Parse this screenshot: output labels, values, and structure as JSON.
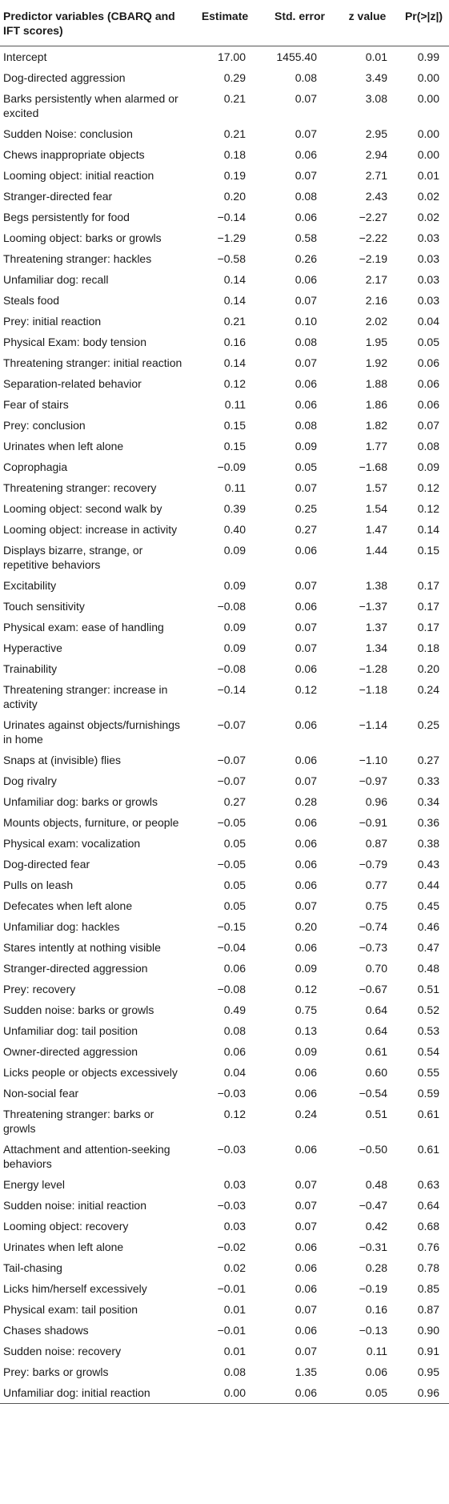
{
  "table": {
    "headers": {
      "predictor": "Predictor variables (CBARQ and IFT scores)",
      "estimate": "Estimate",
      "std_error": "Std. error",
      "z_value": "z value",
      "p_value": "Pr(>|z|)"
    },
    "rows": [
      {
        "name": "Intercept",
        "estimate": "17.00",
        "se": "1455.40",
        "z": "0.01",
        "p": "0.99"
      },
      {
        "name": "Dog-directed aggression",
        "estimate": "0.29",
        "se": "0.08",
        "z": "3.49",
        "p": "0.00"
      },
      {
        "name": "Barks persistently when alarmed or excited",
        "estimate": "0.21",
        "se": "0.07",
        "z": "3.08",
        "p": "0.00"
      },
      {
        "name": "Sudden Noise: conclusion",
        "estimate": "0.21",
        "se": "0.07",
        "z": "2.95",
        "p": "0.00"
      },
      {
        "name": "Chews inappropriate objects",
        "estimate": "0.18",
        "se": "0.06",
        "z": "2.94",
        "p": "0.00"
      },
      {
        "name": "Looming object: initial reaction",
        "estimate": "0.19",
        "se": "0.07",
        "z": "2.71",
        "p": "0.01"
      },
      {
        "name": "Stranger-directed fear",
        "estimate": "0.20",
        "se": "0.08",
        "z": "2.43",
        "p": "0.02"
      },
      {
        "name": "Begs persistently for food",
        "estimate": "−0.14",
        "se": "0.06",
        "z": "−2.27",
        "p": "0.02"
      },
      {
        "name": "Looming object: barks or growls",
        "estimate": "−1.29",
        "se": "0.58",
        "z": "−2.22",
        "p": "0.03"
      },
      {
        "name": "Threatening stranger: hackles",
        "estimate": "−0.58",
        "se": "0.26",
        "z": "−2.19",
        "p": "0.03"
      },
      {
        "name": "Unfamiliar dog: recall",
        "estimate": "0.14",
        "se": "0.06",
        "z": "2.17",
        "p": "0.03"
      },
      {
        "name": "Steals food",
        "estimate": "0.14",
        "se": "0.07",
        "z": "2.16",
        "p": "0.03"
      },
      {
        "name": "Prey: initial reaction",
        "estimate": "0.21",
        "se": "0.10",
        "z": "2.02",
        "p": "0.04"
      },
      {
        "name": "Physical Exam: body tension",
        "estimate": "0.16",
        "se": "0.08",
        "z": "1.95",
        "p": "0.05"
      },
      {
        "name": "Threatening stranger: initial reaction",
        "estimate": "0.14",
        "se": "0.07",
        "z": "1.92",
        "p": "0.06"
      },
      {
        "name": "Separation-related behavior",
        "estimate": "0.12",
        "se": "0.06",
        "z": "1.88",
        "p": "0.06"
      },
      {
        "name": "Fear of stairs",
        "estimate": "0.11",
        "se": "0.06",
        "z": "1.86",
        "p": "0.06"
      },
      {
        "name": "Prey: conclusion",
        "estimate": "0.15",
        "se": "0.08",
        "z": "1.82",
        "p": "0.07"
      },
      {
        "name": "Urinates when left alone",
        "estimate": "0.15",
        "se": "0.09",
        "z": "1.77",
        "p": "0.08"
      },
      {
        "name": "Coprophagia",
        "estimate": "−0.09",
        "se": "0.05",
        "z": "−1.68",
        "p": "0.09"
      },
      {
        "name": "Threatening stranger: recovery",
        "estimate": "0.11",
        "se": "0.07",
        "z": "1.57",
        "p": "0.12"
      },
      {
        "name": "Looming object: second walk by",
        "estimate": "0.39",
        "se": "0.25",
        "z": "1.54",
        "p": "0.12"
      },
      {
        "name": "Looming object: increase in activity",
        "estimate": "0.40",
        "se": "0.27",
        "z": "1.47",
        "p": "0.14"
      },
      {
        "name": "Displays bizarre, strange, or repetitive behaviors",
        "estimate": "0.09",
        "se": "0.06",
        "z": "1.44",
        "p": "0.15"
      },
      {
        "name": "Excitability",
        "estimate": "0.09",
        "se": "0.07",
        "z": "1.38",
        "p": "0.17"
      },
      {
        "name": "Touch sensitivity",
        "estimate": "−0.08",
        "se": "0.06",
        "z": "−1.37",
        "p": "0.17"
      },
      {
        "name": "Physical exam: ease of handling",
        "estimate": "0.09",
        "se": "0.07",
        "z": "1.37",
        "p": "0.17"
      },
      {
        "name": "Hyperactive",
        "estimate": "0.09",
        "se": "0.07",
        "z": "1.34",
        "p": "0.18"
      },
      {
        "name": "Trainability",
        "estimate": "−0.08",
        "se": "0.06",
        "z": "−1.28",
        "p": "0.20"
      },
      {
        "name": "Threatening stranger: increase in activity",
        "estimate": "−0.14",
        "se": "0.12",
        "z": "−1.18",
        "p": "0.24"
      },
      {
        "name": "Urinates against objects/furnishings in home",
        "estimate": "−0.07",
        "se": "0.06",
        "z": "−1.14",
        "p": "0.25"
      },
      {
        "name": "Snaps at (invisible) flies",
        "estimate": "−0.07",
        "se": "0.06",
        "z": "−1.10",
        "p": "0.27"
      },
      {
        "name": "Dog rivalry",
        "estimate": "−0.07",
        "se": "0.07",
        "z": "−0.97",
        "p": "0.33"
      },
      {
        "name": "Unfamiliar dog: barks or growls",
        "estimate": "0.27",
        "se": "0.28",
        "z": "0.96",
        "p": "0.34"
      },
      {
        "name": "Mounts objects, furniture, or people",
        "estimate": "−0.05",
        "se": "0.06",
        "z": "−0.91",
        "p": "0.36"
      },
      {
        "name": "Physical exam: vocalization",
        "estimate": "0.05",
        "se": "0.06",
        "z": "0.87",
        "p": "0.38"
      },
      {
        "name": "Dog-directed fear",
        "estimate": "−0.05",
        "se": "0.06",
        "z": "−0.79",
        "p": "0.43"
      },
      {
        "name": "Pulls on leash",
        "estimate": "0.05",
        "se": "0.06",
        "z": "0.77",
        "p": "0.44"
      },
      {
        "name": "Defecates when left alone",
        "estimate": "0.05",
        "se": "0.07",
        "z": "0.75",
        "p": "0.45"
      },
      {
        "name": "Unfamiliar dog: hackles",
        "estimate": "−0.15",
        "se": "0.20",
        "z": "−0.74",
        "p": "0.46"
      },
      {
        "name": "Stares intently at nothing visible",
        "estimate": "−0.04",
        "se": "0.06",
        "z": "−0.73",
        "p": "0.47"
      },
      {
        "name": "Stranger-directed aggression",
        "estimate": "0.06",
        "se": "0.09",
        "z": "0.70",
        "p": "0.48"
      },
      {
        "name": "Prey: recovery",
        "estimate": "−0.08",
        "se": "0.12",
        "z": "−0.67",
        "p": "0.51"
      },
      {
        "name": "Sudden noise: barks or growls",
        "estimate": "0.49",
        "se": "0.75",
        "z": "0.64",
        "p": "0.52"
      },
      {
        "name": "Unfamiliar dog: tail position",
        "estimate": "0.08",
        "se": "0.13",
        "z": "0.64",
        "p": "0.53"
      },
      {
        "name": "Owner-directed aggression",
        "estimate": "0.06",
        "se": "0.09",
        "z": "0.61",
        "p": "0.54"
      },
      {
        "name": "Licks people or objects excessively",
        "estimate": "0.04",
        "se": "0.06",
        "z": "0.60",
        "p": "0.55"
      },
      {
        "name": "Non-social fear",
        "estimate": "−0.03",
        "se": "0.06",
        "z": "−0.54",
        "p": "0.59"
      },
      {
        "name": "Threatening stranger: barks or growls",
        "estimate": "0.12",
        "se": "0.24",
        "z": "0.51",
        "p": "0.61"
      },
      {
        "name": "Attachment and attention-seeking behaviors",
        "estimate": "−0.03",
        "se": "0.06",
        "z": "−0.50",
        "p": "0.61"
      },
      {
        "name": "Energy level",
        "estimate": "0.03",
        "se": "0.07",
        "z": "0.48",
        "p": "0.63"
      },
      {
        "name": "Sudden noise: initial reaction",
        "estimate": "−0.03",
        "se": "0.07",
        "z": "−0.47",
        "p": "0.64"
      },
      {
        "name": "Looming object: recovery",
        "estimate": "0.03",
        "se": "0.07",
        "z": "0.42",
        "p": "0.68"
      },
      {
        "name": "Urinates when left alone",
        "estimate": "−0.02",
        "se": "0.06",
        "z": "−0.31",
        "p": "0.76"
      },
      {
        "name": "Tail-chasing",
        "estimate": "0.02",
        "se": "0.06",
        "z": "0.28",
        "p": "0.78"
      },
      {
        "name": "Licks him/herself excessively",
        "estimate": "−0.01",
        "se": "0.06",
        "z": "−0.19",
        "p": "0.85"
      },
      {
        "name": "Physical exam: tail position",
        "estimate": "0.01",
        "se": "0.07",
        "z": "0.16",
        "p": "0.87"
      },
      {
        "name": "Chases shadows",
        "estimate": "−0.01",
        "se": "0.06",
        "z": "−0.13",
        "p": "0.90"
      },
      {
        "name": "Sudden noise: recovery",
        "estimate": "0.01",
        "se": "0.07",
        "z": "0.11",
        "p": "0.91"
      },
      {
        "name": "Prey: barks or growls",
        "estimate": "0.08",
        "se": "1.35",
        "z": "0.06",
        "p": "0.95"
      },
      {
        "name": "Unfamiliar dog: initial reaction",
        "estimate": "0.00",
        "se": "0.06",
        "z": "0.05",
        "p": "0.96"
      }
    ]
  }
}
